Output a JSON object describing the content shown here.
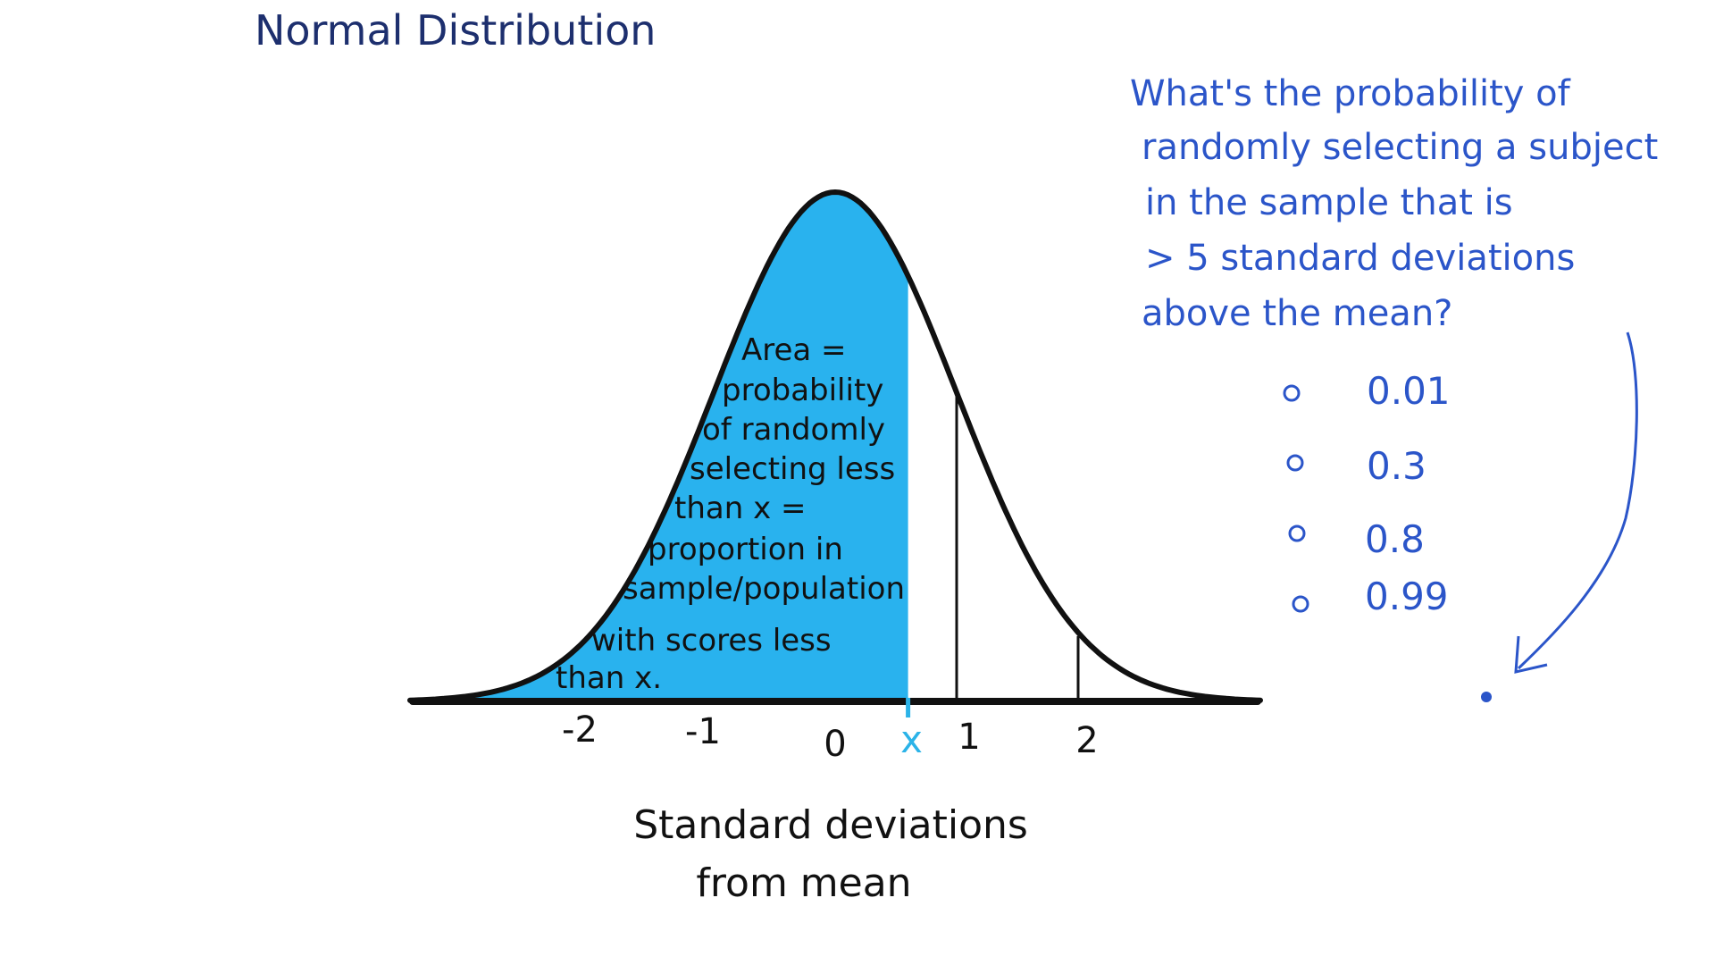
{
  "title": "Normal Distribution",
  "question_lines": [
    "What's the probability of",
    "randomly selecting a subject",
    "in the sample that is",
    "> 5 standard deviations",
    "above the mean?"
  ],
  "options": [
    {
      "label": "0.01"
    },
    {
      "label": "0.3"
    },
    {
      "label": "0.8"
    },
    {
      "label": "0.99"
    }
  ],
  "area_note_lines": [
    "Area =",
    "probability",
    "of randomly",
    "selecting less",
    "than x =",
    "proportion in",
    "sample/population",
    "with scores less",
    "than x."
  ],
  "x_marker_label": "x",
  "chart_data": {
    "type": "area",
    "distribution": "normal",
    "mean": 0,
    "sd": 1,
    "x_ticks": [
      "-2",
      "-1",
      "0",
      "1",
      "2"
    ],
    "x_tick_values": [
      -2,
      -1,
      0,
      1,
      2
    ],
    "xlabel": [
      "Standard deviations",
      "from mean"
    ],
    "shaded_region": {
      "from": -3.5,
      "to": 0.6
    },
    "vertical_lines_at": [
      1,
      2
    ],
    "xlim": [
      -3.5,
      3.5
    ]
  },
  "colors": {
    "fill": "#29b2ee",
    "curve": "#111111",
    "title": "#1d2f6e",
    "question": "#2b55c9",
    "marker": "#2bb3e8"
  }
}
